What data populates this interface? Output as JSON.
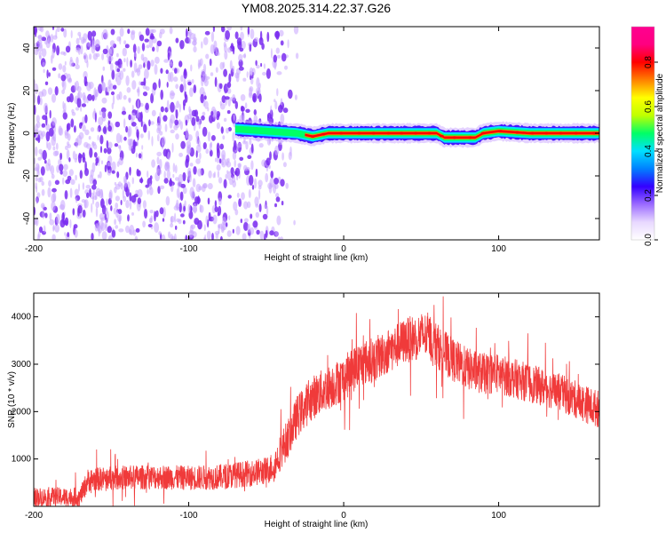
{
  "title": "YM08.2025.314.22.37.G26",
  "colors": {
    "noise": "#7a2df0",
    "noise_light": "#c9a6ff",
    "snr_line": "#f03a3a",
    "axis": "#000000"
  },
  "colorbar": {
    "label": "Normalized spectral amplitude",
    "range": [
      0,
      0.96
    ],
    "ticks": [
      "0.0",
      "0.2",
      "0.4",
      "0.6",
      "0.8"
    ],
    "tick_values": [
      0.0,
      0.2,
      0.4,
      0.6,
      0.8
    ],
    "stops": [
      "#ffffff",
      "#e8d8ff",
      "#9b6bff",
      "#3300ff",
      "#0080ff",
      "#00e0ff",
      "#00ff66",
      "#c0ff00",
      "#ffff00",
      "#ff8000",
      "#ff0000",
      "#ff0080",
      "#ff0090"
    ]
  },
  "chart_data": [
    {
      "type": "heatmap",
      "name": "spectrogram",
      "title": "YM08.2025.314.22.37.G26",
      "xlabel": "Height of straight line (km)",
      "ylabel": "Frequency (Hz)",
      "xlim": [
        -200,
        165
      ],
      "ylim": [
        -50,
        50
      ],
      "xticks": [
        "-200",
        "-100",
        "0",
        "100"
      ],
      "xtick_values": [
        -200,
        -100,
        0,
        100
      ],
      "yticks": [
        "40",
        "20",
        "0",
        "-20",
        "-40"
      ],
      "ytick_values": [
        40,
        20,
        0,
        -20,
        -40
      ],
      "noise_region_x": [
        -200,
        -40
      ],
      "signal_region_x": [
        -70,
        165
      ],
      "signal_frequency_hz": 0,
      "signal_path": [
        [
          -70,
          2
        ],
        [
          -60,
          1.5
        ],
        [
          -50,
          1
        ],
        [
          -40,
          0.5
        ],
        [
          -30,
          0
        ],
        [
          -20,
          -1.5
        ],
        [
          -10,
          0
        ],
        [
          0,
          0
        ],
        [
          50,
          0
        ],
        [
          60,
          0
        ],
        [
          65,
          -2
        ],
        [
          85,
          -2
        ],
        [
          90,
          0
        ],
        [
          100,
          1
        ],
        [
          120,
          0
        ],
        [
          165,
          0
        ]
      ]
    },
    {
      "type": "line",
      "name": "snr",
      "xlabel": "Height of straight line (km)",
      "ylabel": "SNR (10 * v/v)",
      "xlim": [
        -200,
        165
      ],
      "ylim": [
        0,
        4500
      ],
      "xticks": [
        "-200",
        "-100",
        "0",
        "100"
      ],
      "xtick_values": [
        -200,
        -100,
        0,
        100
      ],
      "yticks": [
        "1000",
        "2000",
        "3000",
        "4000"
      ],
      "ytick_values": [
        1000,
        2000,
        3000,
        4000
      ],
      "series": [
        {
          "name": "SNR",
          "x": [
            -200,
            -170,
            -165,
            -150,
            -120,
            -100,
            -80,
            -60,
            -50,
            -45,
            -40,
            -35,
            -30,
            -25,
            -20,
            -15,
            -10,
            0,
            10,
            20,
            30,
            40,
            50,
            55,
            60,
            70,
            80,
            90,
            100,
            110,
            120,
            130,
            140,
            150,
            160,
            165
          ],
          "values": [
            200,
            200,
            550,
            600,
            620,
            600,
            620,
            700,
            750,
            850,
            1200,
            1500,
            1900,
            2100,
            2300,
            2400,
            2500,
            2700,
            3000,
            3100,
            3300,
            3500,
            3600,
            3600,
            3400,
            3100,
            2900,
            2800,
            2800,
            2700,
            2600,
            2500,
            2400,
            2250,
            2100,
            2050
          ],
          "spread": [
            200,
            200,
            250,
            260,
            260,
            260,
            270,
            280,
            300,
            320,
            400,
            420,
            450,
            460,
            470,
            470,
            470,
            480,
            480,
            480,
            480,
            480,
            500,
            500,
            480,
            460,
            450,
            440,
            430,
            420,
            410,
            400,
            400,
            400,
            400,
            400
          ]
        }
      ]
    }
  ]
}
